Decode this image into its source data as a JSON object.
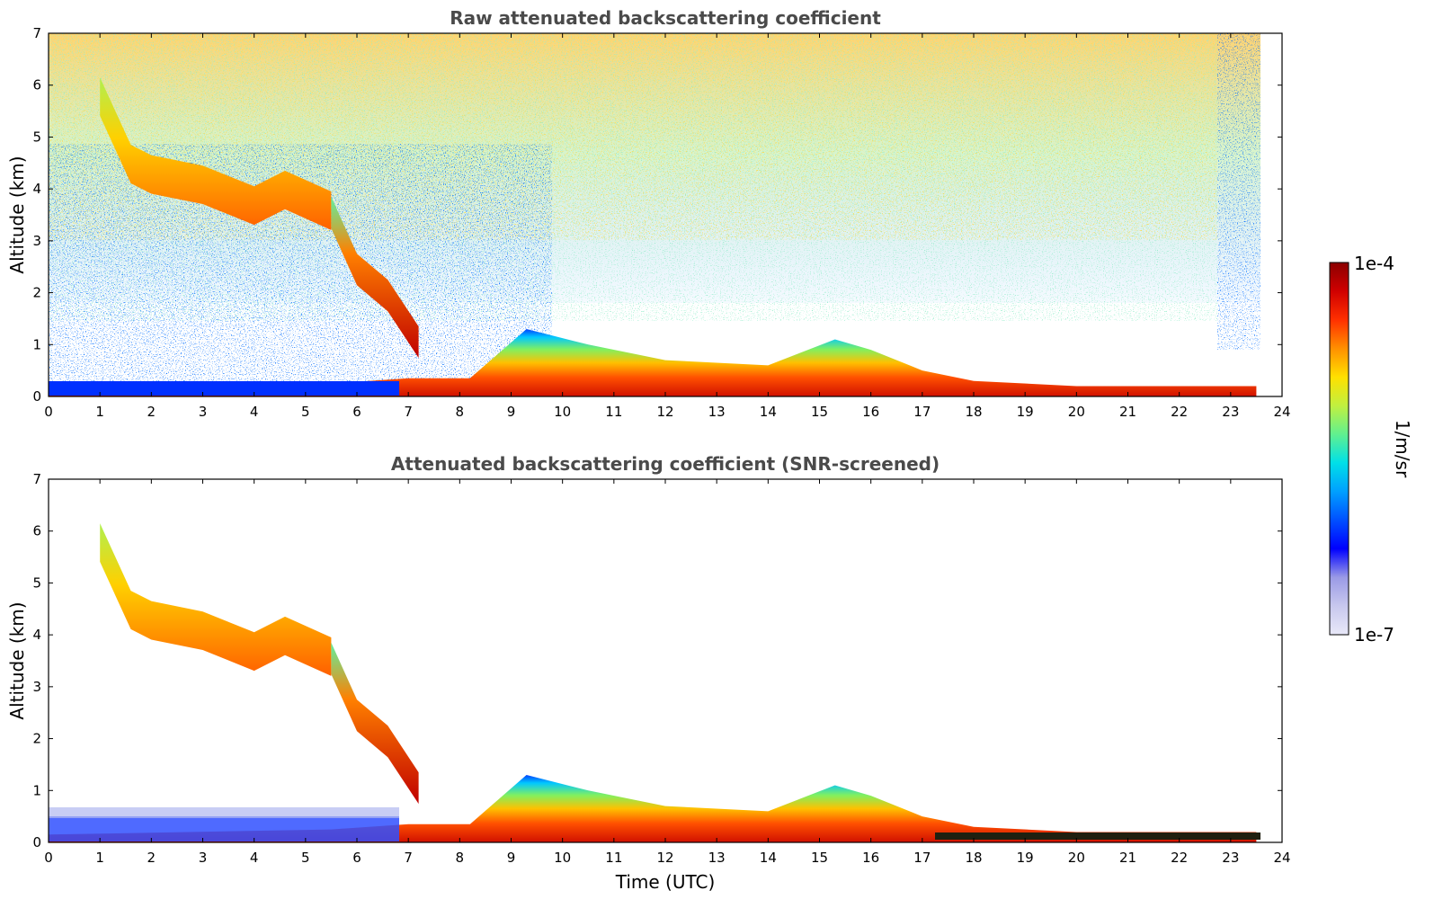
{
  "chart_data": [
    {
      "type": "heatmap",
      "title": "Raw attenuated backscattering coefficient",
      "xlabel": "",
      "ylabel": "Altitude (km)",
      "xlim": [
        0,
        24
      ],
      "ylim": [
        0,
        7
      ],
      "xticks": [
        "0",
        "1",
        "2",
        "3",
        "4",
        "5",
        "6",
        "7",
        "8",
        "9",
        "10",
        "11",
        "12",
        "13",
        "14",
        "15",
        "16",
        "17",
        "18",
        "19",
        "20",
        "21",
        "22",
        "23",
        "24"
      ],
      "yticks": [
        "0",
        "1",
        "2",
        "3",
        "4",
        "5",
        "6",
        "7"
      ],
      "data_end_time": 23.55,
      "features": {
        "upper_noise": true,
        "descending_cloud_base_km": [
          [
            1.0,
            5.6
          ],
          [
            1.6,
            4.3
          ],
          [
            2.0,
            4.1
          ],
          [
            3.0,
            3.9
          ],
          [
            4.0,
            3.5
          ],
          [
            4.6,
            3.8
          ],
          [
            5.5,
            3.4
          ],
          [
            6.0,
            2.3
          ],
          [
            6.6,
            1.8
          ],
          [
            7.2,
            0.9
          ]
        ],
        "boundary_layer_top_km": [
          [
            0,
            0.15
          ],
          [
            5.5,
            0.25
          ],
          [
            7.0,
            0.35
          ],
          [
            8.2,
            0.35
          ],
          [
            9.3,
            1.3
          ],
          [
            10.5,
            1.0
          ],
          [
            12.0,
            0.7
          ],
          [
            14.0,
            0.6
          ],
          [
            15.3,
            1.1
          ],
          [
            16.0,
            0.9
          ],
          [
            17.0,
            0.5
          ],
          [
            18.0,
            0.3
          ],
          [
            20.0,
            0.2
          ],
          [
            23.5,
            0.2
          ]
        ]
      }
    },
    {
      "type": "heatmap",
      "title": "Attenuated backscattering coefficient (SNR-screened)",
      "xlabel": "Time (UTC)",
      "ylabel": "Altitude (km)",
      "xlim": [
        0,
        24
      ],
      "ylim": [
        0,
        7
      ],
      "xticks": [
        "0",
        "1",
        "2",
        "3",
        "4",
        "5",
        "6",
        "7",
        "8",
        "9",
        "10",
        "11",
        "12",
        "13",
        "14",
        "15",
        "16",
        "17",
        "18",
        "19",
        "20",
        "21",
        "22",
        "23",
        "24"
      ],
      "yticks": [
        "0",
        "1",
        "2",
        "3",
        "4",
        "5",
        "6",
        "7"
      ],
      "data_end_time": 23.55,
      "features": {
        "upper_noise": false
      }
    }
  ],
  "colorbar": {
    "label": "1/m/sr",
    "min_label": "1e-7",
    "max_label": "1e-4",
    "colors": [
      "#e8e8f8",
      "#c8c8ee",
      "#9a9ae6",
      "#0000ff",
      "#0050ff",
      "#00a0ff",
      "#00e0e8",
      "#60f090",
      "#c0f040",
      "#ffe000",
      "#ff9000",
      "#ff3000",
      "#d00000",
      "#8b0000"
    ]
  }
}
